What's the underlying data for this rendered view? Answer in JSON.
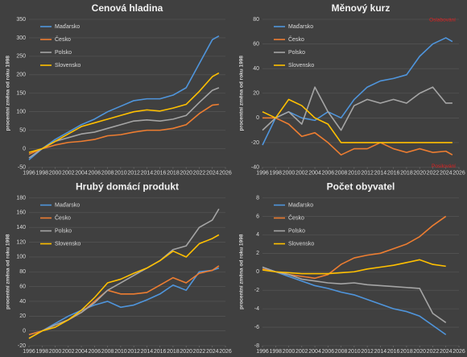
{
  "chart_data": [
    {
      "type": "line",
      "title": "Cenová hladina",
      "y_label": "procentní změna od roku 1998",
      "x": [
        1996,
        1998,
        2000,
        2002,
        2004,
        2006,
        2008,
        2010,
        2012,
        2014,
        2016,
        2018,
        2020,
        2022,
        2024,
        2025
      ],
      "xlim": [
        1996,
        2026
      ],
      "xticks": [
        1996,
        1998,
        2000,
        2002,
        2004,
        2006,
        2008,
        2010,
        2012,
        2014,
        2016,
        2018,
        2020,
        2022,
        2024,
        2026
      ],
      "ylim": [
        -50,
        350
      ],
      "yticks": [
        -50,
        0,
        50,
        100,
        150,
        200,
        250,
        300,
        350
      ],
      "grid": true,
      "legend": "top-left",
      "series": [
        {
          "name": "Maďarsko",
          "color": "#4f95dc",
          "values": [
            -30,
            0,
            25,
            45,
            65,
            80,
            100,
            115,
            130,
            135,
            135,
            145,
            165,
            230,
            295,
            305
          ]
        },
        {
          "name": "Česko",
          "color": "#ed7d31",
          "values": [
            -15,
            0,
            10,
            17,
            20,
            25,
            35,
            38,
            45,
            50,
            50,
            55,
            65,
            95,
            118,
            120
          ]
        },
        {
          "name": "Polsko",
          "color": "#a5a5a5",
          "values": [
            -25,
            0,
            20,
            30,
            40,
            45,
            55,
            65,
            75,
            78,
            75,
            80,
            90,
            125,
            158,
            165
          ]
        },
        {
          "name": "Slovensko",
          "color": "#ffc000",
          "values": [
            -10,
            0,
            20,
            40,
            60,
            70,
            80,
            90,
            100,
            105,
            102,
            110,
            120,
            155,
            195,
            205
          ]
        }
      ]
    },
    {
      "type": "line",
      "title": "Měnový kurz",
      "y_label": "procentní změna od roku 1998",
      "annotations": [
        "Oslabování",
        "Posilování"
      ],
      "x": [
        1996,
        1998,
        2000,
        2002,
        2004,
        2006,
        2008,
        2010,
        2012,
        2014,
        2016,
        2018,
        2020,
        2022,
        2024,
        2025
      ],
      "xlim": [
        1996,
        2026
      ],
      "xticks": [
        1996,
        1998,
        2000,
        2002,
        2004,
        2006,
        2008,
        2010,
        2012,
        2014,
        2016,
        2018,
        2020,
        2022,
        2024,
        2026
      ],
      "ylim": [
        -40,
        80
      ],
      "yticks": [
        -40,
        -20,
        0,
        20,
        40,
        60,
        80
      ],
      "grid": true,
      "legend": "top-left",
      "series": [
        {
          "name": "Maďarsko",
          "color": "#4f95dc",
          "values": [
            -22,
            0,
            5,
            0,
            -2,
            5,
            0,
            15,
            25,
            30,
            32,
            35,
            50,
            60,
            65,
            62
          ]
        },
        {
          "name": "Česko",
          "color": "#ed7d31",
          "values": [
            0,
            0,
            -5,
            -15,
            -12,
            -20,
            -30,
            -25,
            -25,
            -20,
            -25,
            -28,
            -25,
            -28,
            -27,
            -30
          ]
        },
        {
          "name": "Polsko",
          "color": "#a5a5a5",
          "values": [
            -10,
            0,
            5,
            -5,
            25,
            5,
            -10,
            10,
            15,
            12,
            15,
            12,
            20,
            25,
            12,
            12
          ]
        },
        {
          "name": "Slovensko",
          "color": "#ffc000",
          "values": [
            5,
            0,
            15,
            10,
            0,
            -5,
            -20,
            -20,
            -20,
            -20,
            -20,
            -20,
            -20,
            -20,
            -20,
            -20
          ]
        }
      ]
    },
    {
      "type": "line",
      "title": "Hrubý domácí produkt",
      "y_label": "procentní změna od roku 1998",
      "x": [
        1996,
        1998,
        2000,
        2002,
        2004,
        2006,
        2008,
        2010,
        2012,
        2014,
        2016,
        2018,
        2020,
        2022,
        2024,
        2025
      ],
      "xlim": [
        1996,
        2026
      ],
      "xticks": [
        1996,
        1998,
        2000,
        2002,
        2004,
        2006,
        2008,
        2010,
        2012,
        2014,
        2016,
        2018,
        2020,
        2022,
        2024,
        2026
      ],
      "ylim": [
        -20,
        180
      ],
      "yticks": [
        -20,
        0,
        20,
        40,
        60,
        80,
        100,
        120,
        140,
        160,
        180
      ],
      "grid": true,
      "legend": "top-left",
      "series": [
        {
          "name": "Maďarsko",
          "color": "#4f95dc",
          "values": [
            -5,
            0,
            10,
            20,
            28,
            35,
            40,
            32,
            35,
            42,
            50,
            62,
            55,
            80,
            82,
            85
          ]
        },
        {
          "name": "Česko",
          "color": "#ed7d31",
          "values": [
            -5,
            0,
            8,
            15,
            25,
            40,
            55,
            50,
            50,
            52,
            62,
            72,
            65,
            78,
            82,
            88
          ]
        },
        {
          "name": "Polsko",
          "color": "#a5a5a5",
          "values": [
            -10,
            0,
            8,
            15,
            25,
            38,
            55,
            65,
            75,
            85,
            95,
            110,
            115,
            140,
            150,
            165
          ]
        },
        {
          "name": "Slovensko",
          "color": "#ffc000",
          "values": [
            -10,
            0,
            5,
            15,
            28,
            45,
            65,
            70,
            78,
            85,
            95,
            108,
            100,
            118,
            125,
            130
          ]
        }
      ]
    },
    {
      "type": "line",
      "title": "Počet obyvatel",
      "y_label": "procentní změna od roku 1998",
      "x": [
        1996,
        1998,
        2000,
        2002,
        2004,
        2006,
        2008,
        2010,
        2012,
        2014,
        2016,
        2018,
        2020,
        2022,
        2024
      ],
      "xlim": [
        1996,
        2026
      ],
      "xticks": [
        1996,
        1998,
        2000,
        2002,
        2004,
        2006,
        2008,
        2010,
        2012,
        2014,
        2016,
        2018,
        2020,
        2022,
        2024,
        2026
      ],
      "ylim": [
        -8,
        8
      ],
      "yticks": [
        -8,
        -6,
        -4,
        -2,
        0,
        2,
        4,
        6,
        8
      ],
      "grid": true,
      "legend": "top-left",
      "series": [
        {
          "name": "Maďarsko",
          "color": "#4f95dc",
          "values": [
            0.5,
            0,
            -0.5,
            -1,
            -1.5,
            -1.8,
            -2.2,
            -2.5,
            -3,
            -3.5,
            -4,
            -4.3,
            -4.8,
            -5.8,
            -6.8
          ]
        },
        {
          "name": "Česko",
          "color": "#ed7d31",
          "values": [
            0.3,
            0,
            -0.3,
            -0.5,
            -0.7,
            -0.3,
            0.8,
            1.5,
            1.8,
            2,
            2.5,
            3,
            3.8,
            5,
            6
          ]
        },
        {
          "name": "Polsko",
          "color": "#a5a5a5",
          "values": [
            0.5,
            0,
            -0.3,
            -0.8,
            -1,
            -1.2,
            -1.3,
            -1.2,
            -1.4,
            -1.5,
            -1.6,
            -1.7,
            -1.8,
            -4.5,
            -5.5
          ]
        },
        {
          "name": "Slovensko",
          "color": "#ffc000",
          "values": [
            0.2,
            0,
            -0.1,
            -0.2,
            -0.2,
            -0.2,
            -0.1,
            0,
            0.3,
            0.5,
            0.7,
            1,
            1.3,
            0.8,
            0.6
          ]
        }
      ]
    }
  ]
}
